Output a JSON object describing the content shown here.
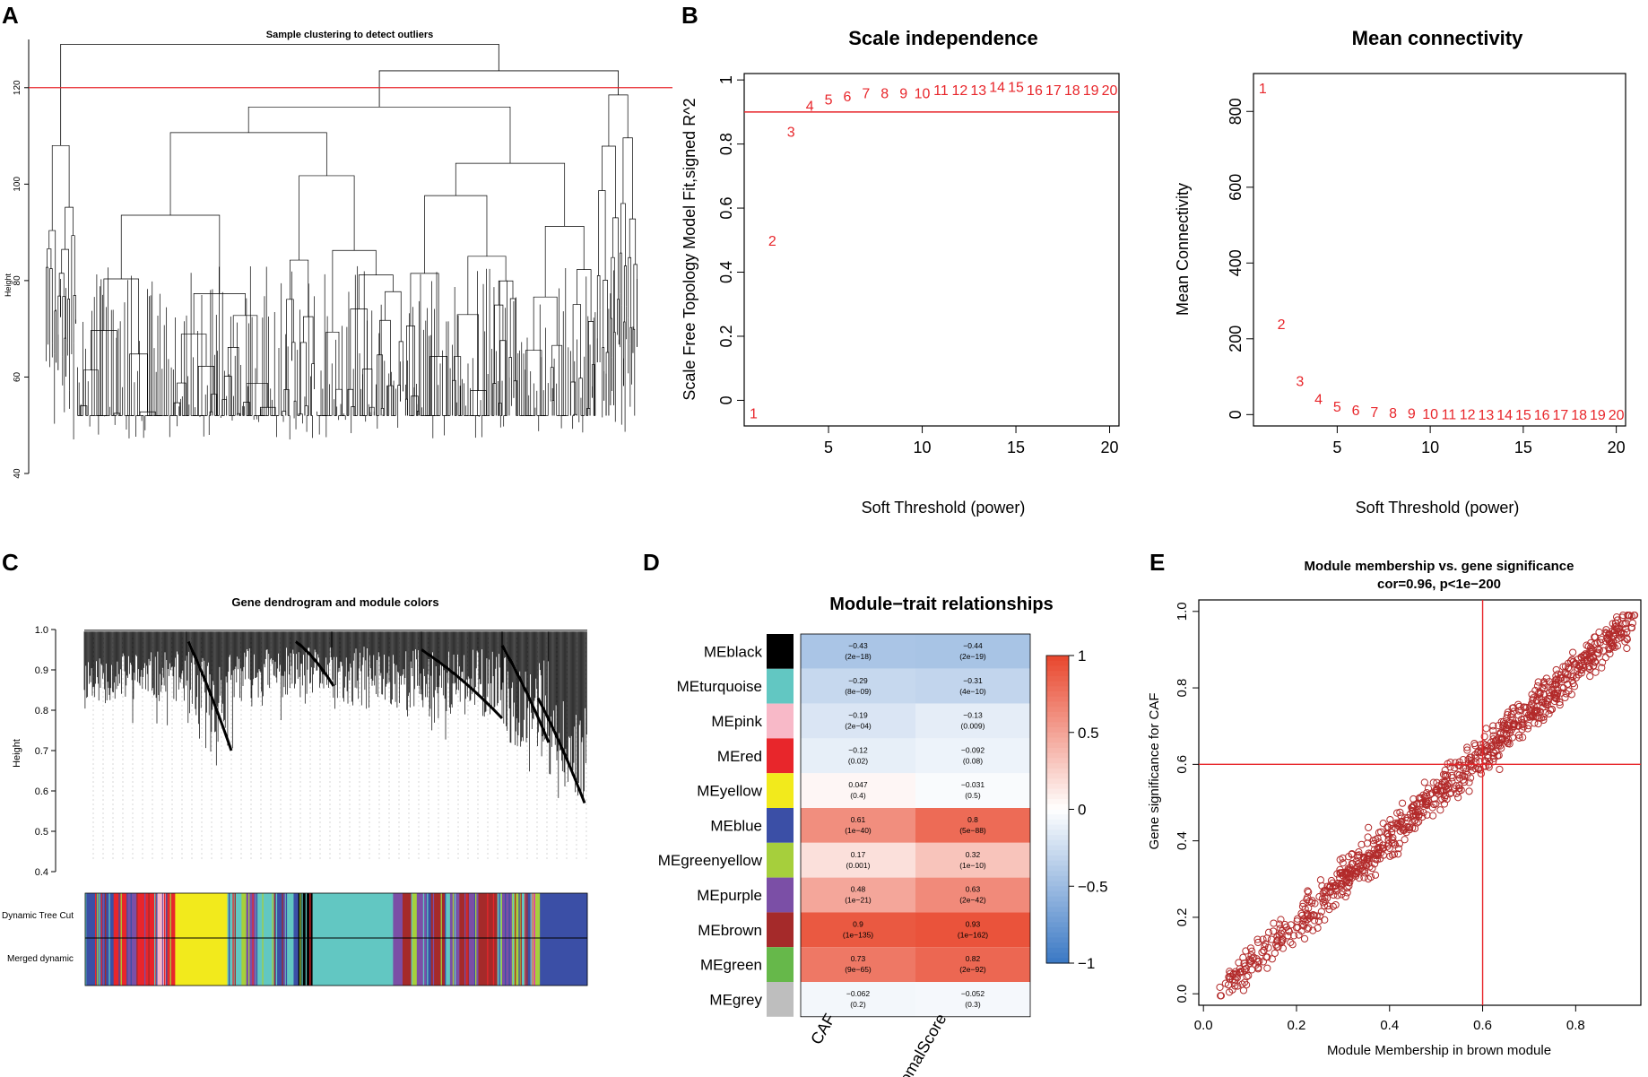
{
  "panel_labels": {
    "a": "A",
    "b": "B",
    "c": "C",
    "d": "D",
    "e": "E"
  },
  "colors": {
    "red": "#e8262b",
    "axis": "#000000",
    "point_stroke": "#b22a2a",
    "heat_neg": "#3a78c4",
    "heat_mid": "#ffffff",
    "heat_pos": "#e8462c"
  },
  "chart_data": [
    {
      "id": "A",
      "type": "dendrogram",
      "title": "Sample clustering to detect outliers",
      "ylabel": "Height",
      "ylim": [
        40,
        130
      ],
      "yticks": [
        40,
        60,
        80,
        100,
        120
      ],
      "cut_height": 120
    },
    {
      "id": "B1",
      "type": "scatter",
      "title": "Scale independence",
      "xlabel": "Soft Threshold (power)",
      "ylabel": "Scale Free Topology Model Fit,signed R^2",
      "xlim": [
        0.5,
        20.5
      ],
      "ylim": [
        -0.08,
        1.02
      ],
      "xticks": [
        5,
        10,
        15,
        20
      ],
      "yticks": [
        0.0,
        0.2,
        0.4,
        0.6,
        0.8,
        1.0
      ],
      "hline": 0.9,
      "x": [
        1,
        2,
        3,
        4,
        5,
        6,
        7,
        8,
        9,
        10,
        11,
        12,
        13,
        14,
        15,
        16,
        17,
        18,
        19,
        20
      ],
      "y": [
        -0.04,
        0.5,
        0.84,
        0.92,
        0.94,
        0.95,
        0.96,
        0.96,
        0.96,
        0.96,
        0.97,
        0.97,
        0.97,
        0.98,
        0.98,
        0.97,
        0.97,
        0.97,
        0.97,
        0.97
      ],
      "point_labels": [
        "1",
        "2",
        "3",
        "4",
        "5",
        "6",
        "7",
        "8",
        "9",
        "10",
        "11",
        "12",
        "13",
        "14",
        "15",
        "16",
        "17",
        "18",
        "19",
        "20"
      ]
    },
    {
      "id": "B2",
      "type": "scatter",
      "title": "Mean connectivity",
      "xlabel": "Soft Threshold (power)",
      "ylabel": "Mean Connectivity",
      "xlim": [
        0.5,
        20.5
      ],
      "ylim": [
        -30,
        900
      ],
      "xticks": [
        5,
        10,
        15,
        20
      ],
      "yticks": [
        0,
        200,
        400,
        600,
        800
      ],
      "x": [
        1,
        2,
        3,
        4,
        5,
        6,
        7,
        8,
        9,
        10,
        11,
        12,
        13,
        14,
        15,
        16,
        17,
        18,
        19,
        20
      ],
      "y": [
        862,
        240,
        90,
        42,
        22,
        13,
        8,
        5,
        4,
        3,
        2,
        2,
        1,
        1,
        1,
        1,
        1,
        1,
        1,
        1
      ],
      "point_labels": [
        "1",
        "2",
        "3",
        "4",
        "5",
        "6",
        "7",
        "8",
        "9",
        "10",
        "11",
        "12",
        "13",
        "14",
        "15",
        "16",
        "17",
        "18",
        "19",
        "20"
      ]
    },
    {
      "id": "C",
      "type": "dendrogram",
      "title": "Gene dendrogram and module colors",
      "ylabel": "Height",
      "ylim": [
        0.4,
        1.0
      ],
      "yticks": [
        0.4,
        0.5,
        0.6,
        0.7,
        0.8,
        0.9,
        1.0
      ],
      "color_rows": [
        "Dynamic Tree Cut",
        "Merged dynamic"
      ],
      "module_blocks": [
        {
          "color": "#3b4fa6",
          "width": 6
        },
        {
          "color": "#e8262b",
          "width": 3
        },
        {
          "color": "#7b4fa6",
          "width": 2
        },
        {
          "color": "#e8262b",
          "width": 4
        },
        {
          "color": "#f8b9c8",
          "width": 2
        },
        {
          "color": "#e8262b",
          "width": 2
        },
        {
          "color": "#f2ea1c",
          "width": 11
        },
        {
          "color": "#62c7c2",
          "width": 3
        },
        {
          "color": "#a6cf3c",
          "width": 1
        },
        {
          "color": "#7b4fa6",
          "width": 2
        },
        {
          "color": "#62c7c2",
          "width": 4
        },
        {
          "color": "#3b4fa6",
          "width": 2
        },
        {
          "color": "#62c7c2",
          "width": 2
        },
        {
          "color": "#3b4fa6",
          "width": 1
        },
        {
          "color": "#000000",
          "width": 3
        },
        {
          "color": "#62c7c2",
          "width": 17
        },
        {
          "color": "#7b4fa6",
          "width": 2
        },
        {
          "color": "#a52a2a",
          "width": 2
        },
        {
          "color": "#a6cf3c",
          "width": 1
        },
        {
          "color": "#7b4fa6",
          "width": 2
        },
        {
          "color": "#3b4fa6",
          "width": 1
        },
        {
          "color": "#a52a2a",
          "width": 3
        },
        {
          "color": "#62c7c2",
          "width": 1
        },
        {
          "color": "#7b4fa6",
          "width": 2
        },
        {
          "color": "#a52a2a",
          "width": 2
        },
        {
          "color": "#7b4fa6",
          "width": 2
        },
        {
          "color": "#a52a2a",
          "width": 4
        },
        {
          "color": "#62c7c2",
          "width": 1
        },
        {
          "color": "#7b4fa6",
          "width": 2
        },
        {
          "color": "#a6cf3c",
          "width": 2
        },
        {
          "color": "#62c7c2",
          "width": 1
        },
        {
          "color": "#3b4fa6",
          "width": 1
        },
        {
          "color": "#e83ea6",
          "width": 1
        },
        {
          "color": "#a6cf3c",
          "width": 1
        },
        {
          "color": "#3b4fa6",
          "width": 10
        }
      ]
    },
    {
      "id": "D",
      "type": "heatmap",
      "title": "Module−trait relationships",
      "rows": [
        "MEblack",
        "MEturquoise",
        "MEpink",
        "MEred",
        "MEyellow",
        "MEblue",
        "MEgreenyellow",
        "MEpurple",
        "MEbrown",
        "MEgreen",
        "MEgrey"
      ],
      "row_colors": [
        "#000000",
        "#62c7c2",
        "#f8b9c8",
        "#e8262b",
        "#f2ea1c",
        "#3b4fa6",
        "#a6cf3c",
        "#7b4fa6",
        "#a52a2a",
        "#66b84a",
        "#bebebe"
      ],
      "columns": [
        "CAF",
        "StromalScore"
      ],
      "values": [
        [
          -0.43,
          -0.44
        ],
        [
          -0.29,
          -0.31
        ],
        [
          -0.19,
          -0.13
        ],
        [
          -0.12,
          -0.092
        ],
        [
          0.047,
          -0.031
        ],
        [
          0.61,
          0.8
        ],
        [
          0.17,
          0.32
        ],
        [
          0.48,
          0.63
        ],
        [
          0.9,
          0.93
        ],
        [
          0.73,
          0.82
        ],
        [
          -0.062,
          -0.052
        ]
      ],
      "cell_text": [
        [
          [
            "−0.43",
            "(2e−18)"
          ],
          [
            "−0.44",
            "(2e−19)"
          ]
        ],
        [
          [
            "−0.29",
            "(8e−09)"
          ],
          [
            "−0.31",
            "(4e−10)"
          ]
        ],
        [
          [
            "−0.19",
            "(2e−04)"
          ],
          [
            "−0.13",
            "(0.009)"
          ]
        ],
        [
          [
            "−0.12",
            "(0.02)"
          ],
          [
            "−0.092",
            "(0.08)"
          ]
        ],
        [
          [
            "0.047",
            "(0.4)"
          ],
          [
            "−0.031",
            "(0.5)"
          ]
        ],
        [
          [
            "0.61",
            "(1e−40)"
          ],
          [
            "0.8",
            "(5e−88)"
          ]
        ],
        [
          [
            "0.17",
            "(0.001)"
          ],
          [
            "0.32",
            "(1e−10)"
          ]
        ],
        [
          [
            "0.48",
            "(1e−21)"
          ],
          [
            "0.63",
            "(2e−42)"
          ]
        ],
        [
          [
            "0.9",
            "(1e−135)"
          ],
          [
            "0.93",
            "(1e−162)"
          ]
        ],
        [
          [
            "0.73",
            "(9e−65)"
          ],
          [
            "0.82",
            "(2e−92)"
          ]
        ],
        [
          [
            "−0.062",
            "(0.2)"
          ],
          [
            "−0.052",
            "(0.3)"
          ]
        ]
      ],
      "legend_ticks": [
        -1,
        -0.5,
        0,
        0.5,
        1
      ],
      "legend_tick_labels": [
        "−1",
        "−0.5",
        "0",
        "0.5",
        "1"
      ]
    },
    {
      "id": "E",
      "type": "scatter",
      "title": "Module membership vs. gene significance",
      "subtitle": "cor=0.96, p<1e−200",
      "xlabel": "Module Membership in brown module",
      "ylabel": "Gene significance for CAF",
      "xlim": [
        -0.01,
        0.94
      ],
      "ylim": [
        -0.03,
        1.03
      ],
      "xticks": [
        0.0,
        0.2,
        0.4,
        0.6,
        0.8
      ],
      "yticks": [
        0.0,
        0.2,
        0.4,
        0.6,
        0.8,
        1.0
      ],
      "vline": 0.6,
      "hline": 0.6,
      "trend": {
        "x": [
          0.03,
          0.92
        ],
        "y": [
          0.0,
          0.98
        ]
      },
      "n_points": 900,
      "noise_sd": 0.045
    }
  ]
}
